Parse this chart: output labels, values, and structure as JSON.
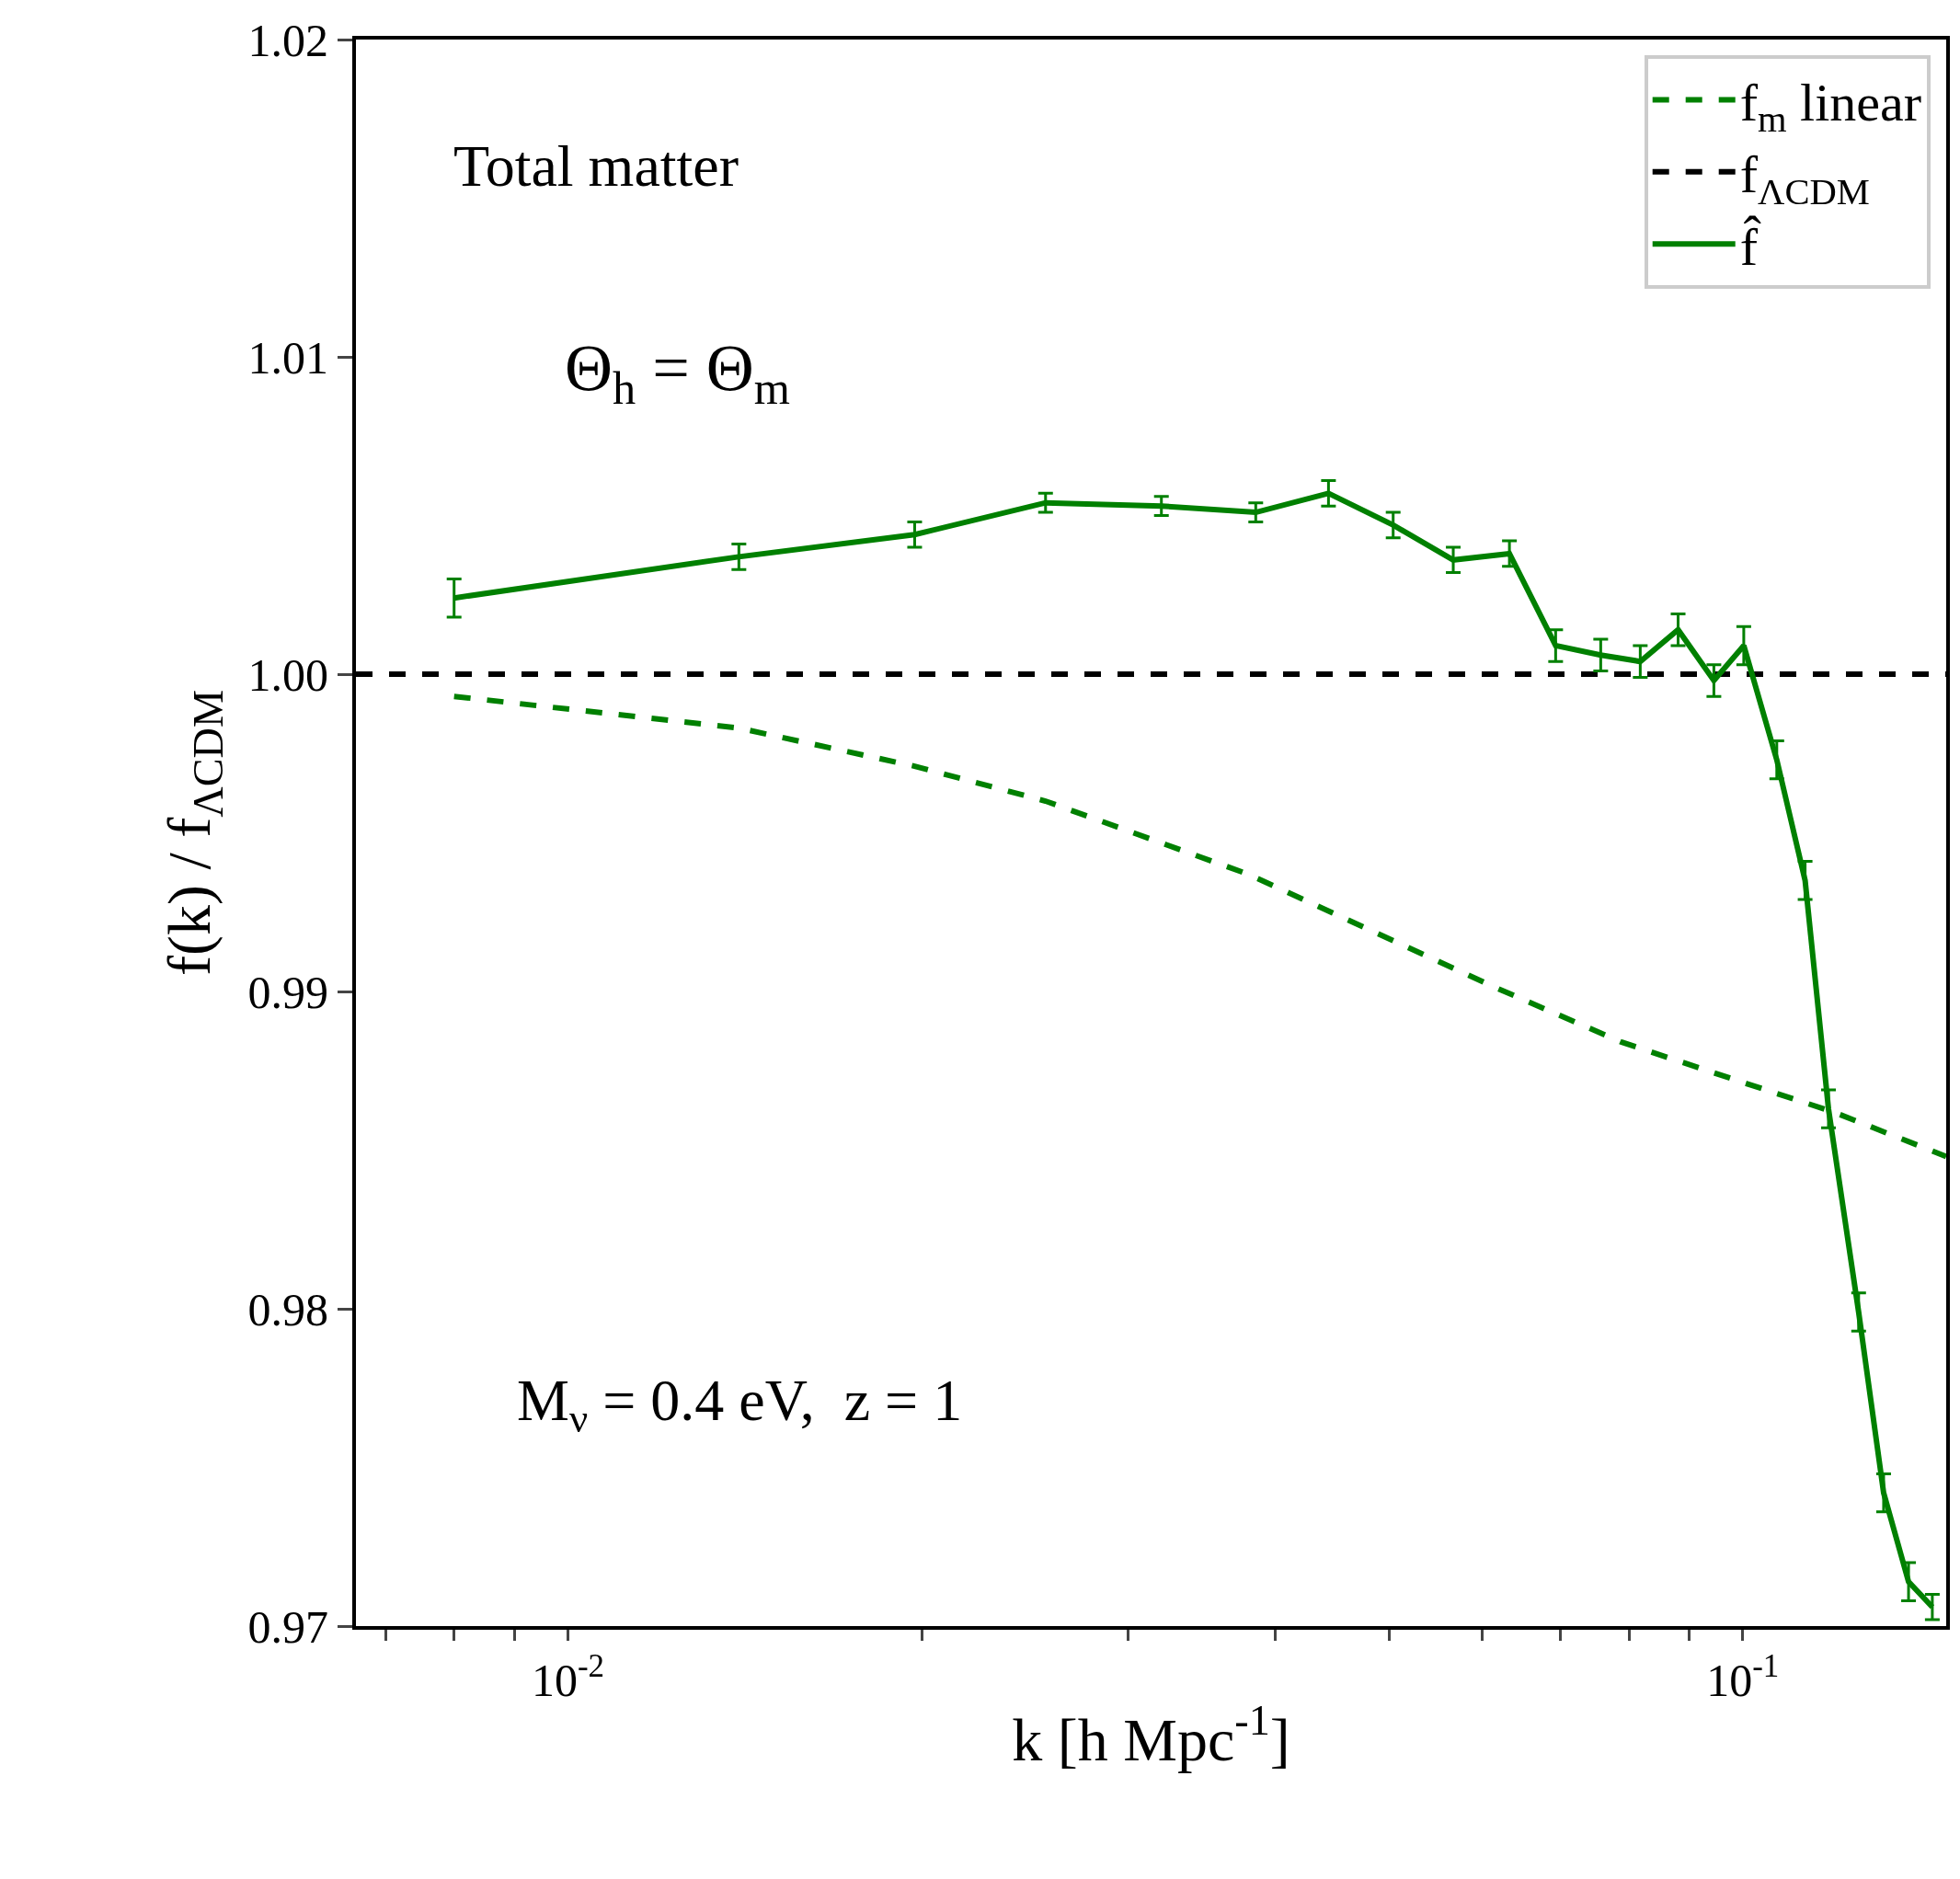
{
  "chart_data": {
    "type": "line",
    "xlabel": "k [h Mpc$^{-1}$]",
    "ylabel": "f(k) / f$_{ΛCDM}$",
    "annotations": [
      "Total matter",
      "Θ$_{h}$ = Θ$_{m}$",
      "M$_{ν}$ = 0.4 eV,  z = 1"
    ],
    "log": "x",
    "legend": "top right",
    "marker": "none",
    "xlim": [
      0.0066,
      0.149
    ],
    "ylim": [
      0.97,
      1.02
    ],
    "xticks": [
      {
        "value": 0.007,
        "label": null
      },
      {
        "value": 0.008,
        "label": null
      },
      {
        "value": 0.009,
        "label": null
      },
      {
        "value": 0.01,
        "label": "10$^{-2}$"
      },
      {
        "value": 0.02,
        "label": null
      },
      {
        "value": 0.03,
        "label": null
      },
      {
        "value": 0.04,
        "label": null
      },
      {
        "value": 0.05,
        "label": null
      },
      {
        "value": 0.06,
        "label": null
      },
      {
        "value": 0.07,
        "label": null
      },
      {
        "value": 0.08,
        "label": null
      },
      {
        "value": 0.09,
        "label": null
      },
      {
        "value": 0.1,
        "label": "10$^{-1}$"
      }
    ],
    "yticks": [
      0.97,
      0.98,
      0.99,
      {
        "value": 1.0,
        "label": "1.00"
      },
      1.01,
      1.02
    ],
    "ref_lines": [
      {
        "axis": "y",
        "value": 1.0,
        "label": "f$_{ΛCDM}$",
        "color": "#000000",
        "line_style": "dashed"
      }
    ],
    "series": [
      {
        "name": "f$_{m}$ linear",
        "color": "#008000",
        "line_style": "dashed",
        "x": [
          0.008,
          0.01398,
          0.01973,
          0.0255,
          0.0379,
          0.0484,
          0.0618,
          0.0789,
          0.1007,
          0.1195,
          0.149
        ],
        "values": [
          0.9993,
          0.9983,
          0.9971,
          0.996,
          0.9937,
          0.9919,
          0.9901,
          0.9884,
          0.9871,
          0.9862,
          0.9848
        ]
      },
      {
        "name": "f̂",
        "color": "#008000",
        "line_style": "solid",
        "x": [
          0.008,
          0.01398,
          0.01973,
          0.0255,
          0.032,
          0.0385,
          0.0444,
          0.0504,
          0.0567,
          0.0633,
          0.0693,
          0.0757,
          0.0818,
          0.0881,
          0.0945,
          0.1002,
          0.1069,
          0.113,
          0.1183,
          0.1255,
          0.1318,
          0.1384,
          0.145
        ],
        "values": [
          1.0024,
          1.0037,
          1.0044,
          1.0054,
          1.0053,
          1.0051,
          1.0057,
          1.0047,
          1.0036,
          1.0038,
          1.0009,
          1.0006,
          1.0004,
          1.0014,
          0.9998,
          1.0009,
          0.9973,
          0.9935,
          0.9863,
          0.9799,
          0.9742,
          0.9714,
          0.9706
        ],
        "errors": [
          0.0006,
          0.0004,
          0.0004,
          0.0003,
          0.0003,
          0.0003,
          0.0004,
          0.0004,
          0.0004,
          0.0004,
          0.0005,
          0.0005,
          0.0005,
          0.0005,
          0.0005,
          0.0006,
          0.0006,
          0.0006,
          0.0006,
          0.0006,
          0.0006,
          0.0006,
          0.0004
        ]
      }
    ]
  }
}
